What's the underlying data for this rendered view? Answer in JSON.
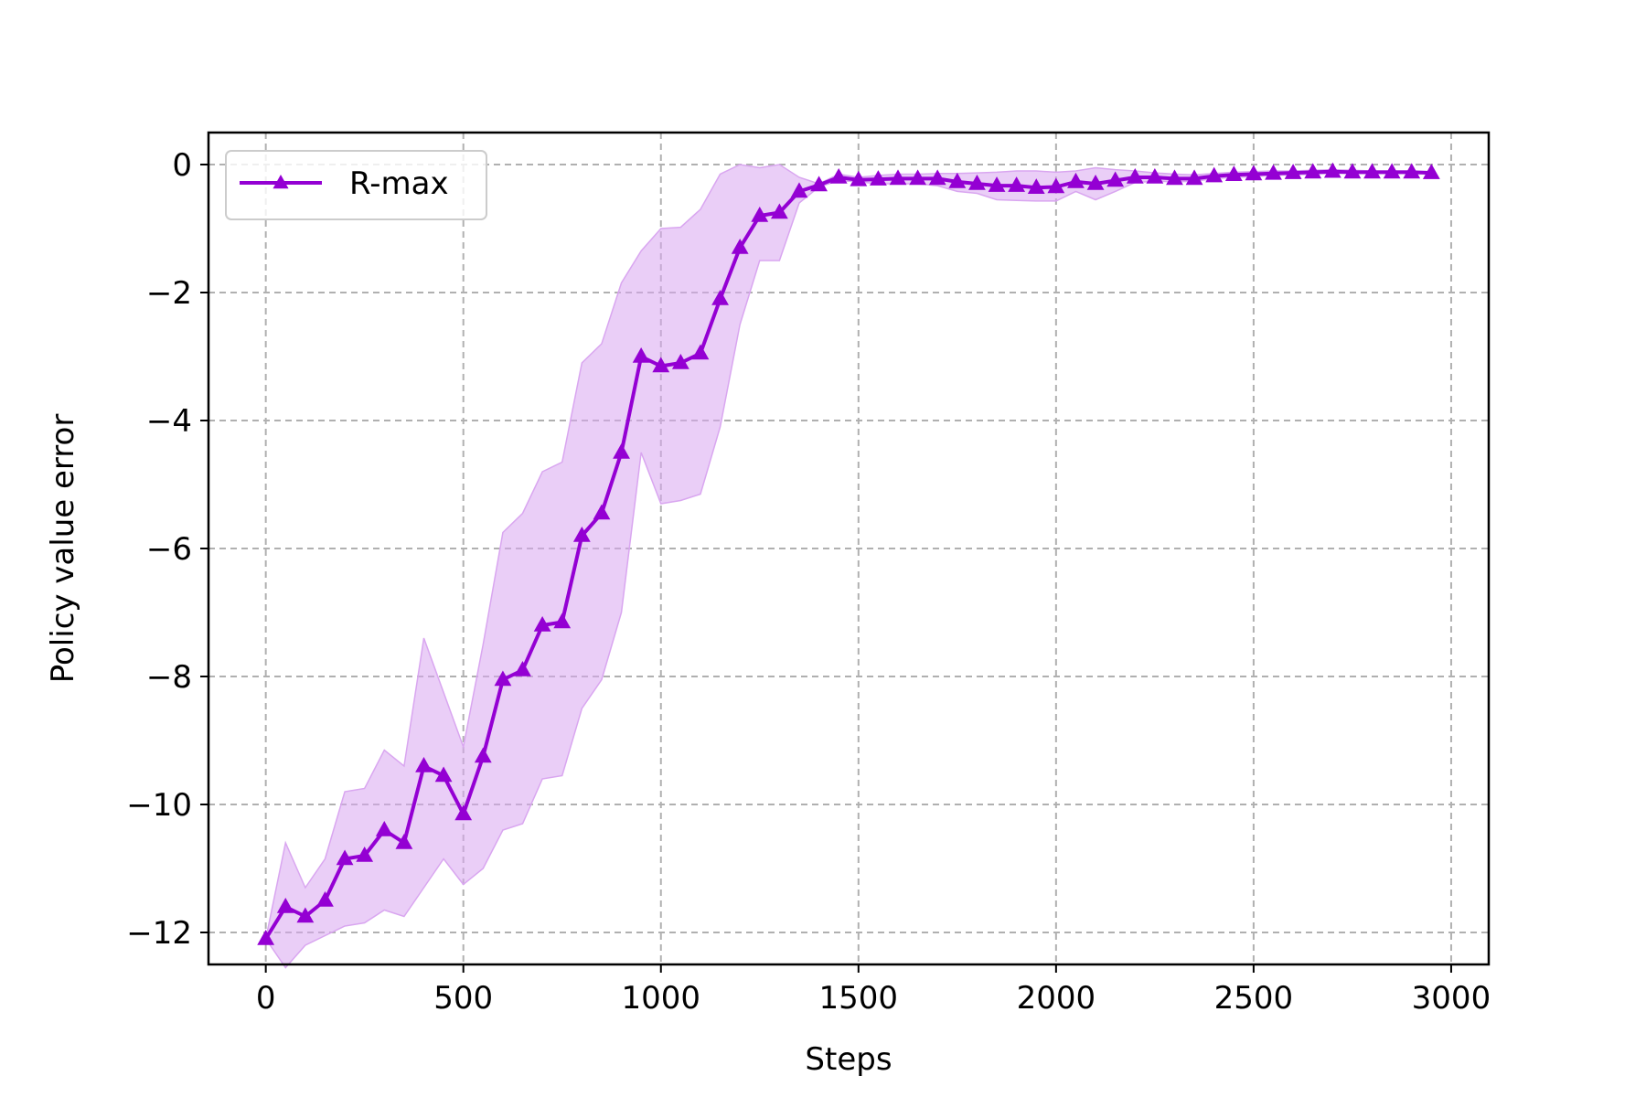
{
  "chart_data": {
    "type": "line",
    "title": "",
    "xlabel": "Steps",
    "ylabel": "Policy value error",
    "xlim": [
      -145,
      3095
    ],
    "ylim": [
      -12.5,
      0.5
    ],
    "xticks": [
      0,
      500,
      1000,
      1500,
      2000,
      2500,
      3000
    ],
    "xtick_labels": [
      "0",
      "500",
      "1000",
      "1500",
      "2000",
      "2500",
      "3000"
    ],
    "yticks": [
      0,
      -2,
      -4,
      -6,
      -8,
      -10,
      -12
    ],
    "ytick_labels": [
      "0",
      "−2",
      "−4",
      "−6",
      "−8",
      "−10",
      "−12"
    ],
    "grid": true,
    "legend_position": "top-left",
    "series": [
      {
        "name": "R-max",
        "color": "#9400D3",
        "band_color": "#D9A6F0",
        "marker": "triangle-up",
        "x": [
          0,
          50,
          100,
          150,
          200,
          250,
          300,
          350,
          400,
          450,
          500,
          550,
          600,
          650,
          700,
          750,
          800,
          850,
          900,
          950,
          1000,
          1050,
          1100,
          1150,
          1200,
          1250,
          1300,
          1350,
          1400,
          1450,
          1500,
          1550,
          1600,
          1650,
          1700,
          1750,
          1800,
          1850,
          1900,
          1950,
          2000,
          2050,
          2100,
          2150,
          2200,
          2250,
          2300,
          2350,
          2400,
          2450,
          2500,
          2550,
          2600,
          2650,
          2700,
          2750,
          2800,
          2850,
          2900,
          2950
        ],
        "y": [
          -12.1,
          -11.6,
          -11.75,
          -11.5,
          -10.85,
          -10.8,
          -10.4,
          -10.6,
          -9.4,
          -9.55,
          -10.15,
          -9.25,
          -8.05,
          -7.9,
          -7.2,
          -7.15,
          -5.8,
          -5.45,
          -4.5,
          -3.0,
          -3.15,
          -3.1,
          -2.95,
          -2.1,
          -1.3,
          -0.8,
          -0.75,
          -0.42,
          -0.32,
          -0.2,
          -0.24,
          -0.23,
          -0.22,
          -0.22,
          -0.22,
          -0.27,
          -0.3,
          -0.33,
          -0.33,
          -0.36,
          -0.35,
          -0.27,
          -0.3,
          -0.25,
          -0.2,
          -0.2,
          -0.22,
          -0.22,
          -0.18,
          -0.16,
          -0.15,
          -0.14,
          -0.13,
          -0.12,
          -0.11,
          -0.12,
          -0.12,
          -0.12,
          -0.12,
          -0.13
        ],
        "lower": [
          -12.1,
          -12.55,
          -12.2,
          -12.05,
          -11.9,
          -11.85,
          -11.65,
          -11.75,
          -11.3,
          -10.85,
          -11.25,
          -11.0,
          -10.4,
          -10.3,
          -9.6,
          -9.55,
          -8.5,
          -8.05,
          -7.0,
          -4.5,
          -5.3,
          -5.25,
          -5.15,
          -4.1,
          -2.5,
          -1.5,
          -1.5,
          -0.6,
          -0.35,
          -0.25,
          -0.27,
          -0.3,
          -0.3,
          -0.3,
          -0.33,
          -0.42,
          -0.45,
          -0.55,
          -0.56,
          -0.57,
          -0.57,
          -0.42,
          -0.55,
          -0.42,
          -0.28,
          -0.26,
          -0.27,
          -0.26,
          -0.22,
          -0.2,
          -0.19,
          -0.17,
          -0.16,
          -0.15,
          -0.14,
          -0.14,
          -0.14,
          -0.14,
          -0.14,
          -0.15
        ],
        "upper": [
          -12.1,
          -10.6,
          -11.3,
          -10.85,
          -9.8,
          -9.75,
          -9.15,
          -9.4,
          -7.4,
          -8.25,
          -9.1,
          -7.5,
          -5.75,
          -5.45,
          -4.8,
          -4.65,
          -3.1,
          -2.8,
          -1.85,
          -1.35,
          -1.0,
          -0.98,
          -0.7,
          -0.15,
          0.0,
          -0.05,
          0.0,
          -0.2,
          -0.3,
          -0.15,
          -0.2,
          -0.17,
          -0.15,
          -0.15,
          -0.14,
          -0.14,
          -0.13,
          -0.12,
          -0.1,
          -0.1,
          -0.12,
          -0.1,
          -0.05,
          -0.08,
          -0.1,
          -0.13,
          -0.15,
          -0.16,
          -0.14,
          -0.12,
          -0.11,
          -0.1,
          -0.1,
          -0.09,
          -0.08,
          -0.09,
          -0.1,
          -0.1,
          -0.1,
          -0.11
        ]
      }
    ]
  }
}
